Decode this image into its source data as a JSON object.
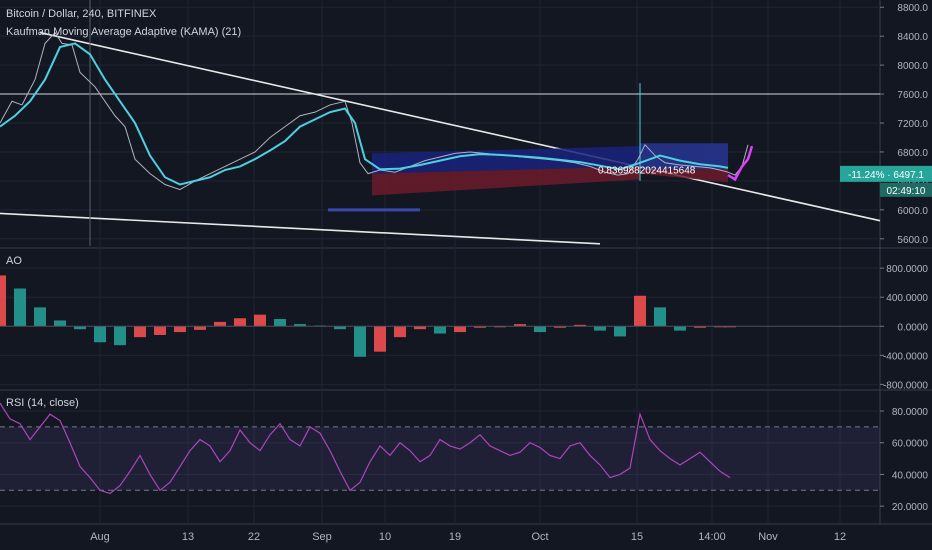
{
  "chart_data": [
    {
      "type": "candlestick",
      "title": "Bitcoin / Dollar, 240, BITFINEX",
      "indicator": "Kaufman Moving Average Adaptive (KAMA) (21)",
      "ylim": [
        5500,
        8900
      ],
      "y_ticks": [
        {
          "value": 8800,
          "label": "8800.0"
        },
        {
          "value": 8400,
          "label": "8400.0"
        },
        {
          "value": 8000,
          "label": "8000.0"
        },
        {
          "value": 7600,
          "label": "7600.0"
        },
        {
          "value": 7200,
          "label": "7200.0"
        },
        {
          "value": 6800,
          "label": "6800.0"
        },
        {
          "value": 6400,
          "label": "6400.0"
        },
        {
          "value": 6000,
          "label": "6000.0"
        },
        {
          "value": 5600,
          "label": "5600.0"
        }
      ],
      "price_label": {
        "value": 6497.1,
        "change": "-11.24%",
        "price": "6497.1",
        "countdown": "02:49:10",
        "color": "#26a69a"
      },
      "horizontal_line": 7600,
      "fib_label": "0.8369882024415648",
      "close_series": {
        "name": "price",
        "x": [
          0,
          12,
          22,
          35,
          45,
          55,
          62,
          72,
          80,
          95,
          105,
          115,
          125,
          135,
          150,
          165,
          180,
          195,
          210,
          225,
          240,
          255,
          270,
          285,
          300,
          315,
          330,
          345,
          352,
          360,
          368,
          380,
          395,
          410,
          425,
          440,
          455,
          470,
          485,
          500,
          515,
          530,
          545,
          560,
          575,
          590,
          605,
          618,
          628,
          638,
          645,
          655,
          665,
          680,
          695,
          710,
          720,
          728,
          735,
          742,
          748
        ],
        "y": [
          7200,
          7500,
          7450,
          7800,
          8300,
          8450,
          8300,
          8280,
          7900,
          7700,
          7500,
          7300,
          7150,
          6700,
          6500,
          6350,
          6280,
          6400,
          6500,
          6600,
          6700,
          6800,
          7000,
          7150,
          7300,
          7350,
          7450,
          7500,
          7200,
          6650,
          6500,
          6550,
          6520,
          6600,
          6680,
          6730,
          6780,
          6800,
          6780,
          6760,
          6740,
          6720,
          6700,
          6680,
          6650,
          6600,
          6520,
          6480,
          6500,
          6700,
          6900,
          6750,
          6650,
          6620,
          6600,
          6580,
          6550,
          6520,
          6480,
          6600,
          6900
        ],
        "color": "#c8ccd6"
      },
      "kama_series": {
        "name": "KAMA",
        "x": [
          0,
          15,
          30,
          45,
          60,
          75,
          90,
          105,
          120,
          135,
          150,
          165,
          180,
          195,
          210,
          225,
          240,
          255,
          270,
          285,
          300,
          315,
          330,
          345,
          355,
          365,
          380,
          400,
          420,
          440,
          460,
          480,
          500,
          520,
          540,
          560,
          580,
          600,
          620,
          640,
          660,
          680,
          700,
          720,
          728
        ],
        "y": [
          7150,
          7300,
          7500,
          7800,
          8250,
          8300,
          8150,
          7800,
          7500,
          7200,
          6750,
          6450,
          6350,
          6400,
          6450,
          6550,
          6600,
          6700,
          6820,
          6950,
          7150,
          7250,
          7350,
          7400,
          7200,
          6700,
          6560,
          6570,
          6620,
          6680,
          6740,
          6770,
          6760,
          6740,
          6720,
          6690,
          6660,
          6610,
          6560,
          6650,
          6750,
          6680,
          6630,
          6600,
          6580
        ],
        "color": "#4dd0e1"
      },
      "forecast_series": {
        "name": "forecast",
        "x": [
          728,
          735,
          742,
          748,
          752
        ],
        "y": [
          6480,
          6420,
          6600,
          6700,
          6880
        ],
        "color": "#e040fb"
      },
      "x_ticks": [
        {
          "value": 100,
          "label": "Aug"
        },
        {
          "value": 188,
          "label": "13"
        },
        {
          "value": 254,
          "label": "22"
        },
        {
          "value": 322,
          "label": "Sep"
        },
        {
          "value": 385,
          "label": "10"
        },
        {
          "value": 455,
          "label": "19"
        },
        {
          "value": 540,
          "label": "Oct"
        },
        {
          "value": 637,
          "label": "15"
        },
        {
          "value": 712,
          "label": "14:00"
        },
        {
          "value": 768,
          "label": "Nov"
        },
        {
          "value": 840,
          "label": "12"
        }
      ]
    },
    {
      "type": "bar",
      "title": "AO",
      "ylim": [
        -850,
        1050
      ],
      "y_ticks": [
        {
          "value": 800,
          "label": "800.0000"
        },
        {
          "value": 400,
          "label": "400.0000"
        },
        {
          "value": 0,
          "label": "0.0000"
        },
        {
          "value": -400,
          "label": "-400.0000"
        },
        {
          "value": -800,
          "label": "-800.0000"
        }
      ],
      "x": [
        0,
        20,
        40,
        60,
        80,
        100,
        120,
        140,
        160,
        180,
        200,
        220,
        240,
        260,
        280,
        300,
        320,
        340,
        360,
        380,
        400,
        420,
        440,
        460,
        480,
        500,
        520,
        540,
        560,
        580,
        600,
        620,
        640,
        660,
        680,
        700,
        720,
        730
      ],
      "values": [
        700,
        520,
        260,
        80,
        -40,
        -220,
        -260,
        -150,
        -120,
        -80,
        -50,
        60,
        110,
        160,
        100,
        30,
        10,
        -40,
        -420,
        -350,
        -150,
        -40,
        -100,
        -80,
        -20,
        -10,
        30,
        -80,
        -20,
        20,
        -60,
        -140,
        420,
        260,
        -60,
        -20,
        -10,
        0
      ],
      "up_color": "#ff5252",
      "down_color": "#26a69a"
    },
    {
      "type": "line",
      "title": "RSI (14, close)",
      "ylim": [
        10,
        92
      ],
      "y_ticks": [
        {
          "value": 80,
          "label": "80.0000"
        },
        {
          "value": 60,
          "label": "60.0000"
        },
        {
          "value": 40,
          "label": "40.0000"
        },
        {
          "value": 20,
          "label": "20.0000"
        }
      ],
      "band": [
        30,
        70
      ],
      "x": [
        0,
        10,
        20,
        30,
        40,
        50,
        60,
        70,
        80,
        90,
        100,
        110,
        120,
        130,
        140,
        150,
        160,
        170,
        180,
        190,
        200,
        210,
        220,
        230,
        240,
        250,
        260,
        270,
        280,
        290,
        300,
        310,
        320,
        330,
        340,
        350,
        360,
        370,
        380,
        390,
        400,
        410,
        420,
        430,
        440,
        450,
        460,
        470,
        480,
        490,
        500,
        510,
        520,
        530,
        540,
        550,
        560,
        570,
        580,
        590,
        600,
        610,
        620,
        630,
        640,
        650,
        660,
        670,
        680,
        690,
        700,
        710,
        720,
        730
      ],
      "values": [
        85,
        75,
        72,
        62,
        70,
        78,
        74,
        60,
        45,
        38,
        30,
        28,
        33,
        42,
        52,
        40,
        30,
        35,
        45,
        55,
        62,
        58,
        48,
        55,
        68,
        60,
        55,
        65,
        72,
        62,
        58,
        70,
        66,
        55,
        42,
        30,
        35,
        48,
        58,
        52,
        60,
        55,
        48,
        52,
        62,
        58,
        56,
        60,
        65,
        58,
        55,
        52,
        54,
        60,
        57,
        52,
        50,
        58,
        60,
        52,
        46,
        38,
        40,
        44,
        78,
        62,
        55,
        50,
        46,
        50,
        54,
        48,
        42,
        38
      ],
      "color": "#ab47bc"
    }
  ]
}
